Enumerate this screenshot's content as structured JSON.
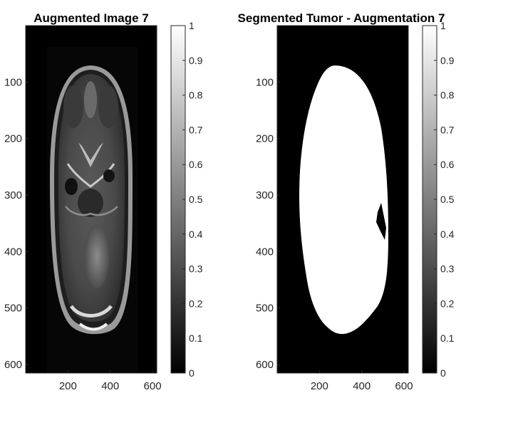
{
  "chart_data": [
    {
      "type": "heatmap",
      "title": "Augmented Image 7",
      "xticks": [
        200,
        400,
        600
      ],
      "yticks": [
        100,
        200,
        300,
        400,
        500,
        600
      ],
      "xlim": [
        0,
        620
      ],
      "ylim": [
        615,
        0
      ],
      "colormap": "gray",
      "colorbar": {
        "ticks": [
          0,
          0.1,
          0.2,
          0.3,
          0.4,
          0.5,
          0.6,
          0.7,
          0.8,
          0.9,
          1
        ],
        "tick_labels": [
          "0",
          "0.1",
          "0.2",
          "0.3",
          "0.4",
          "0.5",
          "0.6",
          "0.7",
          "0.8",
          "0.9",
          "1"
        ],
        "range": [
          0,
          1
        ]
      }
    },
    {
      "type": "heatmap",
      "title": "Segmented Tumor - Augmentation 7",
      "xticks": [
        200,
        400,
        600
      ],
      "yticks": [
        100,
        200,
        300,
        400,
        500,
        600
      ],
      "xlim": [
        0,
        620
      ],
      "ylim": [
        615,
        0
      ],
      "colormap": "gray",
      "colorbar": {
        "ticks": [
          0,
          0.1,
          0.2,
          0.3,
          0.4,
          0.5,
          0.6,
          0.7,
          0.8,
          0.9,
          1
        ],
        "tick_labels": [
          "0",
          "0.1",
          "0.2",
          "0.3",
          "0.4",
          "0.5",
          "0.6",
          "0.7",
          "0.8",
          "0.9",
          "1"
        ],
        "range": [
          0,
          1
        ]
      }
    }
  ]
}
